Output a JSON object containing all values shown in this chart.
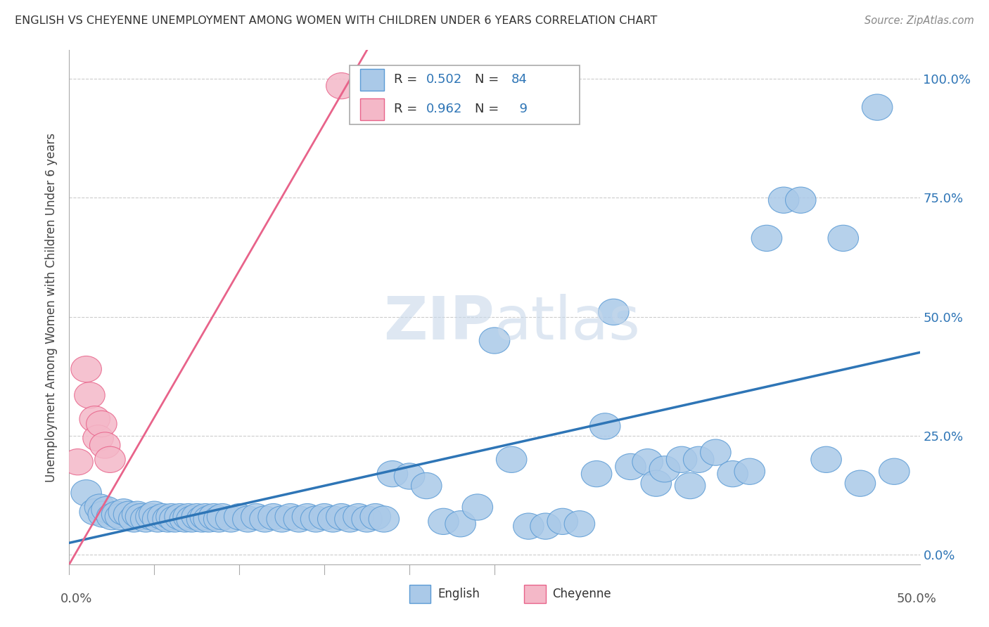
{
  "title": "ENGLISH VS CHEYENNE UNEMPLOYMENT AMONG WOMEN WITH CHILDREN UNDER 6 YEARS CORRELATION CHART",
  "source": "Source: ZipAtlas.com",
  "ylabel": "Unemployment Among Women with Children Under 6 years",
  "xlim": [
    0.0,
    0.5
  ],
  "ylim": [
    -0.02,
    1.06
  ],
  "yticks": [
    0.0,
    0.25,
    0.5,
    0.75,
    1.0
  ],
  "ytick_labels": [
    "0.0%",
    "25.0%",
    "50.0%",
    "75.0%",
    "100.0%"
  ],
  "xtick_labels": [
    "0.0%",
    "50.0%"
  ],
  "english_R": 0.502,
  "english_N": 84,
  "cheyenne_R": 0.962,
  "cheyenne_N": 9,
  "english_color": "#aac9e8",
  "english_edge_color": "#5b9bd5",
  "cheyenne_color": "#f4b8c8",
  "cheyenne_edge_color": "#e8638a",
  "english_line_color": "#2e75b6",
  "cheyenne_line_color": "#e8638a",
  "legend_label_english": "English",
  "legend_label_cheyenne": "Cheyenne",
  "watermark_zip": "ZIP",
  "watermark_atlas": "atlas",
  "english_x": [
    0.01,
    0.015,
    0.018,
    0.02,
    0.022,
    0.025,
    0.028,
    0.03,
    0.032,
    0.035,
    0.038,
    0.04,
    0.042,
    0.045,
    0.048,
    0.05,
    0.052,
    0.055,
    0.058,
    0.06,
    0.062,
    0.065,
    0.068,
    0.07,
    0.072,
    0.075,
    0.078,
    0.08,
    0.082,
    0.085,
    0.088,
    0.09,
    0.095,
    0.1,
    0.105,
    0.11,
    0.115,
    0.12,
    0.125,
    0.13,
    0.135,
    0.14,
    0.145,
    0.15,
    0.155,
    0.16,
    0.165,
    0.17,
    0.175,
    0.18,
    0.185,
    0.19,
    0.2,
    0.21,
    0.22,
    0.23,
    0.24,
    0.25,
    0.26,
    0.27,
    0.28,
    0.29,
    0.3,
    0.31,
    0.315,
    0.32,
    0.33,
    0.34,
    0.345,
    0.35,
    0.36,
    0.365,
    0.37,
    0.38,
    0.39,
    0.4,
    0.41,
    0.42,
    0.43,
    0.445,
    0.455,
    0.465,
    0.475,
    0.485
  ],
  "english_y": [
    0.13,
    0.09,
    0.1,
    0.085,
    0.095,
    0.08,
    0.085,
    0.08,
    0.09,
    0.085,
    0.075,
    0.085,
    0.08,
    0.075,
    0.08,
    0.085,
    0.075,
    0.08,
    0.075,
    0.08,
    0.075,
    0.08,
    0.075,
    0.08,
    0.075,
    0.08,
    0.075,
    0.08,
    0.075,
    0.08,
    0.075,
    0.08,
    0.075,
    0.08,
    0.075,
    0.08,
    0.075,
    0.08,
    0.075,
    0.08,
    0.075,
    0.08,
    0.075,
    0.08,
    0.075,
    0.08,
    0.075,
    0.08,
    0.075,
    0.08,
    0.075,
    0.17,
    0.165,
    0.145,
    0.07,
    0.065,
    0.1,
    0.45,
    0.2,
    0.06,
    0.06,
    0.07,
    0.065,
    0.17,
    0.27,
    0.51,
    0.185,
    0.195,
    0.15,
    0.18,
    0.2,
    0.145,
    0.2,
    0.215,
    0.17,
    0.175,
    0.665,
    0.745,
    0.745,
    0.2,
    0.665,
    0.15,
    0.94,
    0.175
  ],
  "cheyenne_x": [
    0.005,
    0.01,
    0.012,
    0.015,
    0.017,
    0.019,
    0.021,
    0.024,
    0.16
  ],
  "cheyenne_y": [
    0.195,
    0.39,
    0.335,
    0.285,
    0.245,
    0.275,
    0.23,
    0.2,
    0.985
  ],
  "english_trend_x": [
    0.0,
    0.5
  ],
  "english_trend_y": [
    0.025,
    0.425
  ],
  "cheyenne_trend_x": [
    0.0,
    0.175
  ],
  "cheyenne_trend_y": [
    -0.02,
    1.06
  ]
}
